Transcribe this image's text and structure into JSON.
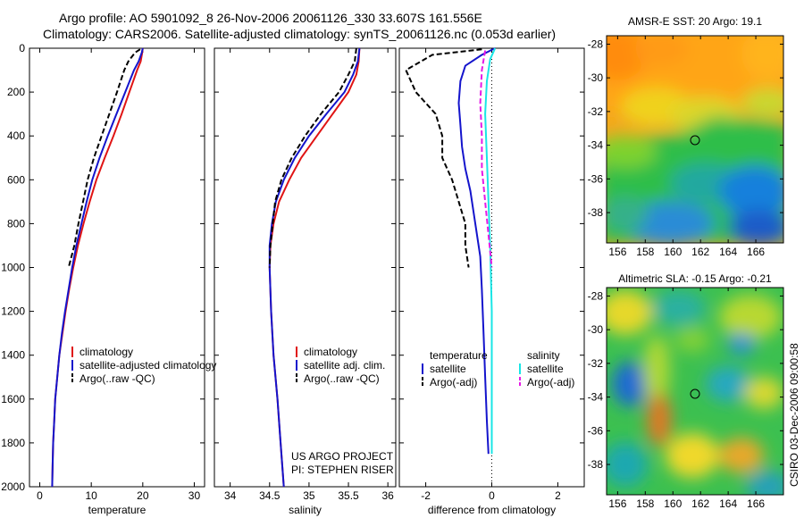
{
  "header": {
    "line1": "Argo profile: AO 5901092_8 26-Nov-2006 20061126_330 33.607S 161.556E",
    "line2": "Climatology: CARS2006. Satellite-adjusted climatology: synTS_20061126.nc (0.053d earlier)"
  },
  "colors": {
    "climatology": "#e01414",
    "satellite": "#1414cc",
    "argo": "#000000",
    "sat_salinity": "#19e6e6",
    "argo_salinity_adj": "#e619e6"
  },
  "footer_text": {
    "project": "US ARGO PROJECT",
    "pi": "PI: STEPHEN RISER",
    "credit": "CSIRO 03-Dec-2006 09:00:58"
  },
  "chart_data": [
    {
      "type": "line",
      "xlabel": "temperature",
      "ylim": [
        2000,
        0
      ],
      "xlim": [
        -2,
        32
      ],
      "xticks": [
        "0",
        "10",
        "20",
        "30"
      ],
      "yticks": [
        "0",
        "200",
        "400",
        "600",
        "800",
        "1000",
        "1200",
        "1400",
        "1600",
        "1800",
        "2000"
      ],
      "legend": [
        "climatology",
        "satellite-adjusted climatology",
        "Argo(..raw -QC)"
      ],
      "series": [
        {
          "name": "climatology",
          "color": "climatology",
          "dash": "solid",
          "points": [
            [
              20,
              0
            ],
            [
              19.9,
              20
            ],
            [
              19.6,
              60
            ],
            [
              18.9,
              100
            ],
            [
              17.4,
              200
            ],
            [
              15.9,
              300
            ],
            [
              14.3,
              400
            ],
            [
              12.6,
              500
            ],
            [
              11.0,
              600
            ],
            [
              9.7,
              700
            ],
            [
              8.5,
              800
            ],
            [
              7.4,
              900
            ],
            [
              6.5,
              1000
            ],
            [
              5.7,
              1100
            ],
            [
              5.0,
              1200
            ],
            [
              4.4,
              1300
            ],
            [
              3.8,
              1400
            ],
            [
              3.4,
              1500
            ],
            [
              3.0,
              1600
            ],
            [
              2.8,
              1700
            ],
            [
              2.6,
              1800
            ],
            [
              2.5,
              1900
            ],
            [
              2.4,
              2000
            ]
          ]
        },
        {
          "name": "satellite-adjusted climatology",
          "color": "satellite",
          "dash": "solid",
          "points": [
            [
              20,
              0
            ],
            [
              19.8,
              20
            ],
            [
              19.2,
              60
            ],
            [
              18.3,
              100
            ],
            [
              16.6,
              200
            ],
            [
              14.9,
              300
            ],
            [
              13.2,
              400
            ],
            [
              11.6,
              500
            ],
            [
              10.2,
              600
            ],
            [
              9.1,
              700
            ],
            [
              8.1,
              800
            ],
            [
              7.1,
              900
            ],
            [
              6.3,
              1000
            ],
            [
              5.6,
              1100
            ],
            [
              4.9,
              1200
            ],
            [
              4.3,
              1300
            ],
            [
              3.8,
              1400
            ],
            [
              3.4,
              1500
            ],
            [
              3.0,
              1600
            ],
            [
              2.8,
              1700
            ],
            [
              2.6,
              1800
            ],
            [
              2.5,
              1900
            ],
            [
              2.4,
              2000
            ]
          ]
        },
        {
          "name": "Argo(..raw -QC)",
          "color": "argo",
          "dash": "dashed",
          "points": [
            [
              19.5,
              5
            ],
            [
              18.5,
              20
            ],
            [
              17.2,
              60
            ],
            [
              16.4,
              100
            ],
            [
              15.0,
              200
            ],
            [
              13.5,
              300
            ],
            [
              12.0,
              400
            ],
            [
              10.5,
              500
            ],
            [
              9.3,
              600
            ],
            [
              8.4,
              700
            ],
            [
              7.5,
              800
            ],
            [
              6.7,
              900
            ],
            [
              5.6,
              1000
            ]
          ]
        }
      ]
    },
    {
      "type": "line",
      "xlabel": "salinity",
      "ylim": [
        2000,
        0
      ],
      "xlim": [
        33.8,
        36.1
      ],
      "xticks": [
        "34",
        "34.5",
        "35",
        "35.5",
        "36"
      ],
      "legend": [
        "climatology",
        "satellite adj. clim.",
        "Argo(..raw -QC)"
      ],
      "annotation": [
        "US ARGO PROJECT",
        "PI: STEPHEN RISER"
      ],
      "series": [
        {
          "name": "climatology",
          "color": "climatology",
          "dash": "solid",
          "points": [
            [
              35.64,
              0
            ],
            [
              35.63,
              60
            ],
            [
              35.6,
              120
            ],
            [
              35.5,
              200
            ],
            [
              35.3,
              300
            ],
            [
              35.1,
              400
            ],
            [
              34.9,
              500
            ],
            [
              34.75,
              600
            ],
            [
              34.62,
              700
            ],
            [
              34.55,
              800
            ],
            [
              34.51,
              900
            ],
            [
              34.5,
              1000
            ],
            [
              34.52,
              1200
            ],
            [
              34.55,
              1400
            ],
            [
              34.6,
              1600
            ],
            [
              34.64,
              1800
            ],
            [
              34.68,
              2000
            ]
          ]
        },
        {
          "name": "satellite adj. clim.",
          "color": "satellite",
          "dash": "solid",
          "points": [
            [
              35.64,
              0
            ],
            [
              35.62,
              60
            ],
            [
              35.56,
              120
            ],
            [
              35.45,
              200
            ],
            [
              35.22,
              300
            ],
            [
              35.0,
              400
            ],
            [
              34.82,
              500
            ],
            [
              34.68,
              600
            ],
            [
              34.58,
              700
            ],
            [
              34.53,
              800
            ],
            [
              34.5,
              900
            ],
            [
              34.5,
              1000
            ],
            [
              34.52,
              1200
            ],
            [
              34.55,
              1400
            ],
            [
              34.6,
              1600
            ],
            [
              34.64,
              1800
            ],
            [
              34.68,
              2000
            ]
          ]
        },
        {
          "name": "Argo(..raw -QC)",
          "color": "argo",
          "dash": "dashed",
          "points": [
            [
              35.6,
              0
            ],
            [
              35.58,
              60
            ],
            [
              35.5,
              120
            ],
            [
              35.38,
              200
            ],
            [
              35.15,
              300
            ],
            [
              34.95,
              400
            ],
            [
              34.78,
              500
            ],
            [
              34.65,
              600
            ],
            [
              34.57,
              700
            ],
            [
              34.54,
              800
            ],
            [
              34.51,
              900
            ],
            [
              34.5,
              1000
            ]
          ]
        }
      ]
    },
    {
      "type": "line",
      "xlabel": "difference from climatology",
      "ylim": [
        2000,
        0
      ],
      "xlim": [
        -2.8,
        2.8
      ],
      "xticks": [
        "-2",
        "0",
        "2"
      ],
      "legend_groups": [
        {
          "heading": "temperature",
          "entries": [
            "satellite",
            "Argo(-adj)"
          ]
        },
        {
          "heading": "salinity",
          "entries": [
            "satellite",
            "Argo(-adj)"
          ]
        }
      ],
      "series": [
        {
          "name": "temperature satellite",
          "color": "satellite",
          "dash": "solid",
          "points": [
            [
              0.1,
              0
            ],
            [
              -0.3,
              30
            ],
            [
              -0.8,
              80
            ],
            [
              -0.95,
              150
            ],
            [
              -1.0,
              250
            ],
            [
              -0.95,
              350
            ],
            [
              -0.9,
              450
            ],
            [
              -0.8,
              550
            ],
            [
              -0.65,
              650
            ],
            [
              -0.55,
              750
            ],
            [
              -0.45,
              850
            ],
            [
              -0.35,
              950
            ],
            [
              -0.3,
              1100
            ],
            [
              -0.25,
              1300
            ],
            [
              -0.2,
              1500
            ],
            [
              -0.15,
              1700
            ],
            [
              -0.1,
              1850
            ]
          ]
        },
        {
          "name": "temperature Argo(-adj)",
          "color": "argo",
          "dash": "dashed",
          "points": [
            [
              -0.3,
              5
            ],
            [
              -1.8,
              30
            ],
            [
              -2.6,
              100
            ],
            [
              -2.3,
              200
            ],
            [
              -1.7,
              300
            ],
            [
              -1.5,
              400
            ],
            [
              -1.5,
              500
            ],
            [
              -1.2,
              600
            ],
            [
              -1.0,
              700
            ],
            [
              -0.8,
              800
            ],
            [
              -0.8,
              900
            ],
            [
              -0.7,
              1000
            ]
          ]
        },
        {
          "name": "salinity satellite",
          "color": "sat_salinity",
          "dash": "solid",
          "points": [
            [
              0.1,
              0
            ],
            [
              -0.05,
              50
            ],
            [
              -0.15,
              150
            ],
            [
              -0.2,
              300
            ],
            [
              -0.15,
              500
            ],
            [
              -0.1,
              700
            ],
            [
              -0.05,
              900
            ],
            [
              0,
              1200
            ],
            [
              0,
              1500
            ],
            [
              0,
              1850
            ]
          ]
        },
        {
          "name": "salinity Argo(-adj)",
          "color": "argo_salinity_adj",
          "dash": "dashed",
          "points": [
            [
              -0.2,
              10
            ],
            [
              -0.3,
              100
            ],
            [
              -0.35,
              250
            ],
            [
              -0.3,
              400
            ],
            [
              -0.3,
              550
            ],
            [
              -0.2,
              700
            ],
            [
              -0.1,
              850
            ],
            [
              0,
              1000
            ]
          ]
        }
      ]
    },
    {
      "type": "heatmap",
      "title": "AMSR-E SST: 20 Argo: 19.1",
      "xticks": [
        "156",
        "158",
        "160",
        "162",
        "164",
        "166"
      ],
      "yticks": [
        "-28",
        "-30",
        "-32",
        "-34",
        "-36",
        "-38"
      ],
      "marker": [
        161.556,
        -33.607
      ]
    },
    {
      "type": "heatmap",
      "title": "Altimetric SLA: -0.15 Argo: -0.21",
      "xticks": [
        "156",
        "158",
        "160",
        "162",
        "164",
        "166"
      ],
      "yticks": [
        "-28",
        "-30",
        "-32",
        "-34",
        "-36",
        "-38"
      ],
      "marker": [
        161.556,
        -33.607
      ]
    }
  ]
}
